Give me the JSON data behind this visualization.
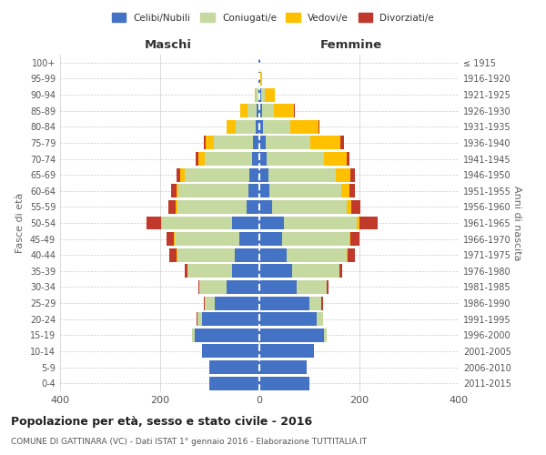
{
  "age_groups": [
    "0-4",
    "5-9",
    "10-14",
    "15-19",
    "20-24",
    "25-29",
    "30-34",
    "35-39",
    "40-44",
    "45-49",
    "50-54",
    "55-59",
    "60-64",
    "65-69",
    "70-74",
    "75-79",
    "80-84",
    "85-89",
    "90-94",
    "95-99",
    "100+"
  ],
  "birth_years": [
    "2011-2015",
    "2006-2010",
    "2001-2005",
    "1996-2000",
    "1991-1995",
    "1986-1990",
    "1981-1985",
    "1976-1980",
    "1971-1975",
    "1966-1970",
    "1961-1965",
    "1956-1960",
    "1951-1955",
    "1946-1950",
    "1941-1945",
    "1936-1940",
    "1931-1935",
    "1926-1930",
    "1921-1925",
    "1916-1920",
    "≤ 1915"
  ],
  "maschi_celibe": [
    100,
    100,
    115,
    130,
    115,
    90,
    65,
    55,
    50,
    40,
    55,
    25,
    22,
    20,
    15,
    12,
    8,
    5,
    2,
    1,
    1
  ],
  "maschi_coniugato": [
    0,
    0,
    0,
    5,
    10,
    20,
    55,
    90,
    115,
    130,
    140,
    140,
    140,
    130,
    95,
    80,
    40,
    18,
    5,
    1,
    0
  ],
  "maschi_vedovo": [
    0,
    0,
    0,
    0,
    0,
    0,
    0,
    0,
    1,
    1,
    2,
    3,
    5,
    8,
    12,
    15,
    18,
    15,
    3,
    0,
    0
  ],
  "maschi_divorziato": [
    0,
    0,
    0,
    0,
    1,
    2,
    3,
    5,
    15,
    15,
    30,
    15,
    10,
    8,
    5,
    5,
    0,
    0,
    0,
    0,
    0
  ],
  "femmine_celibe": [
    100,
    95,
    110,
    130,
    115,
    100,
    75,
    65,
    55,
    45,
    50,
    25,
    20,
    18,
    15,
    12,
    8,
    5,
    3,
    1,
    1
  ],
  "femmine_coniugato": [
    0,
    0,
    0,
    5,
    12,
    25,
    60,
    95,
    120,
    135,
    145,
    150,
    145,
    135,
    115,
    90,
    55,
    25,
    8,
    1,
    0
  ],
  "femmine_vedovo": [
    0,
    0,
    0,
    0,
    0,
    0,
    1,
    1,
    2,
    3,
    5,
    10,
    15,
    30,
    45,
    60,
    55,
    40,
    20,
    3,
    1
  ],
  "femmine_divorziato": [
    0,
    0,
    0,
    0,
    0,
    2,
    3,
    5,
    15,
    18,
    38,
    18,
    12,
    8,
    5,
    8,
    2,
    1,
    0,
    0,
    0
  ],
  "colors": {
    "celibe": "#4472c4",
    "coniugato": "#c5d9a0",
    "vedovo": "#ffc000",
    "divorziato": "#c0392b"
  },
  "title": "Popolazione per età, sesso e stato civile - 2016",
  "subtitle": "COMUNE DI GATTINARA (VC) - Dati ISTAT 1° gennaio 2016 - Elaborazione TUTTITALIA.IT",
  "xlabel_left": "Maschi",
  "xlabel_right": "Femmine",
  "ylabel_left": "Fasce di età",
  "ylabel_right": "Anni di nascita",
  "xlim": 400,
  "bg_color": "#ffffff",
  "grid_color": "#cccccc"
}
